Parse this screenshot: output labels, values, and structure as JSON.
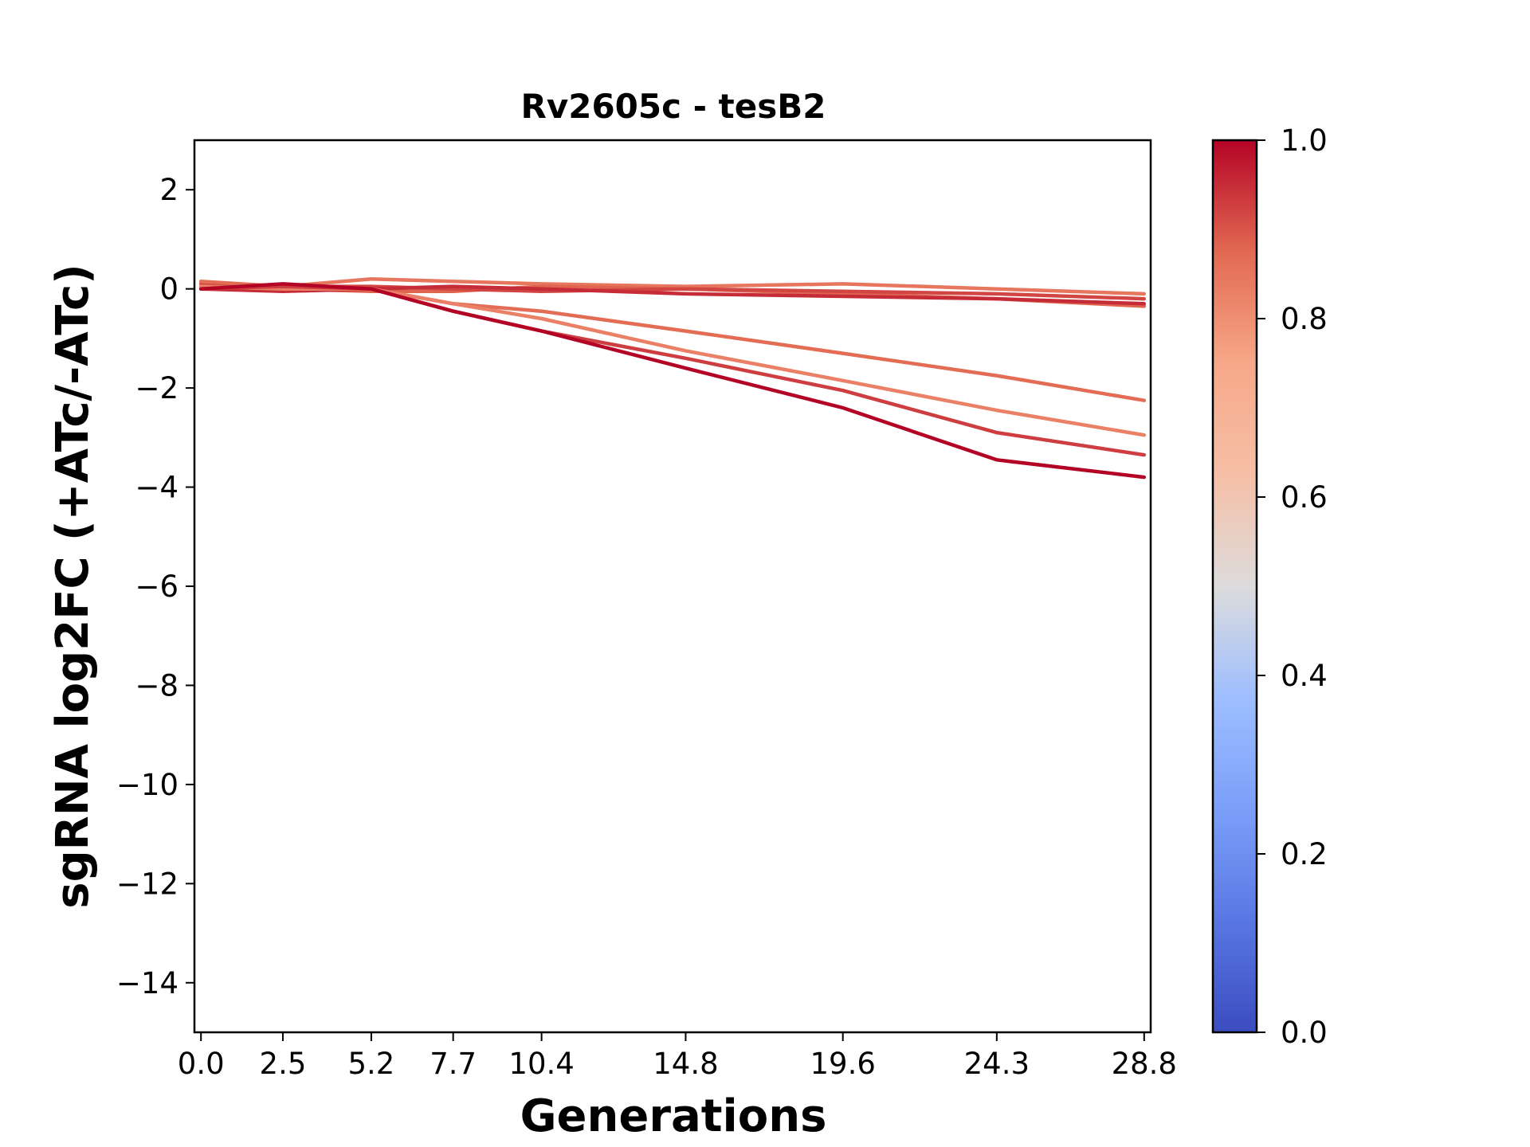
{
  "chart_data": {
    "type": "line",
    "title": "Rv2605c - tesB2",
    "xlabel": "Generations",
    "ylabel": "sgRNA log2FC (+ATc/-ATc)",
    "x": [
      0.0,
      2.5,
      5.2,
      7.7,
      10.4,
      14.8,
      19.6,
      24.3,
      28.8
    ],
    "x_tick_labels": [
      "0.0",
      "2.5",
      "5.2",
      "7.7",
      "10.4",
      "14.8",
      "19.6",
      "24.3",
      "28.8"
    ],
    "y_ticks": [
      2,
      0,
      -2,
      -4,
      -6,
      -8,
      -10,
      -12,
      -14
    ],
    "y_tick_labels": [
      "2",
      "0",
      "−2",
      "−4",
      "−6",
      "−8",
      "−10",
      "−12",
      "−14"
    ],
    "xlim": [
      -0.2,
      29.0
    ],
    "ylim": [
      -15,
      3
    ],
    "grid": false,
    "series": [
      {
        "color_value": 0.85,
        "values": [
          0.0,
          0.05,
          0.2,
          0.15,
          0.1,
          0.05,
          0.1,
          0.0,
          -0.1
        ]
      },
      {
        "color_value": 0.88,
        "values": [
          0.05,
          0.0,
          -0.05,
          -0.05,
          0.05,
          0.0,
          -0.1,
          -0.2,
          -0.35
        ]
      },
      {
        "color_value": 0.92,
        "values": [
          0.1,
          0.05,
          0.05,
          0.0,
          -0.05,
          0.0,
          -0.05,
          -0.1,
          -0.2
        ]
      },
      {
        "color_value": 0.95,
        "values": [
          0.0,
          -0.05,
          0.0,
          0.05,
          0.0,
          -0.1,
          -0.15,
          -0.2,
          -0.3
        ]
      },
      {
        "color_value": 0.87,
        "values": [
          0.15,
          0.05,
          0.0,
          -0.3,
          -0.45,
          -0.85,
          -1.3,
          -1.75,
          -2.25
        ]
      },
      {
        "color_value": 0.83,
        "values": [
          0.05,
          0.0,
          0.0,
          -0.3,
          -0.6,
          -1.25,
          -1.85,
          -2.45,
          -2.95
        ]
      },
      {
        "color_value": 0.93,
        "values": [
          0.0,
          0.05,
          0.0,
          -0.45,
          -0.85,
          -1.4,
          -2.05,
          -2.9,
          -3.35
        ]
      },
      {
        "color_value": 1.0,
        "values": [
          0.0,
          0.1,
          0.0,
          -0.45,
          -0.85,
          -1.6,
          -2.4,
          -3.45,
          -3.8
        ]
      }
    ],
    "colorbar": {
      "colormap": "coolwarm",
      "range": [
        0.0,
        1.0
      ],
      "ticks": [
        0.0,
        0.2,
        0.4,
        0.6,
        0.8,
        1.0
      ],
      "tick_labels": [
        "0.0",
        "0.2",
        "0.4",
        "0.6",
        "0.8",
        "1.0"
      ]
    }
  }
}
